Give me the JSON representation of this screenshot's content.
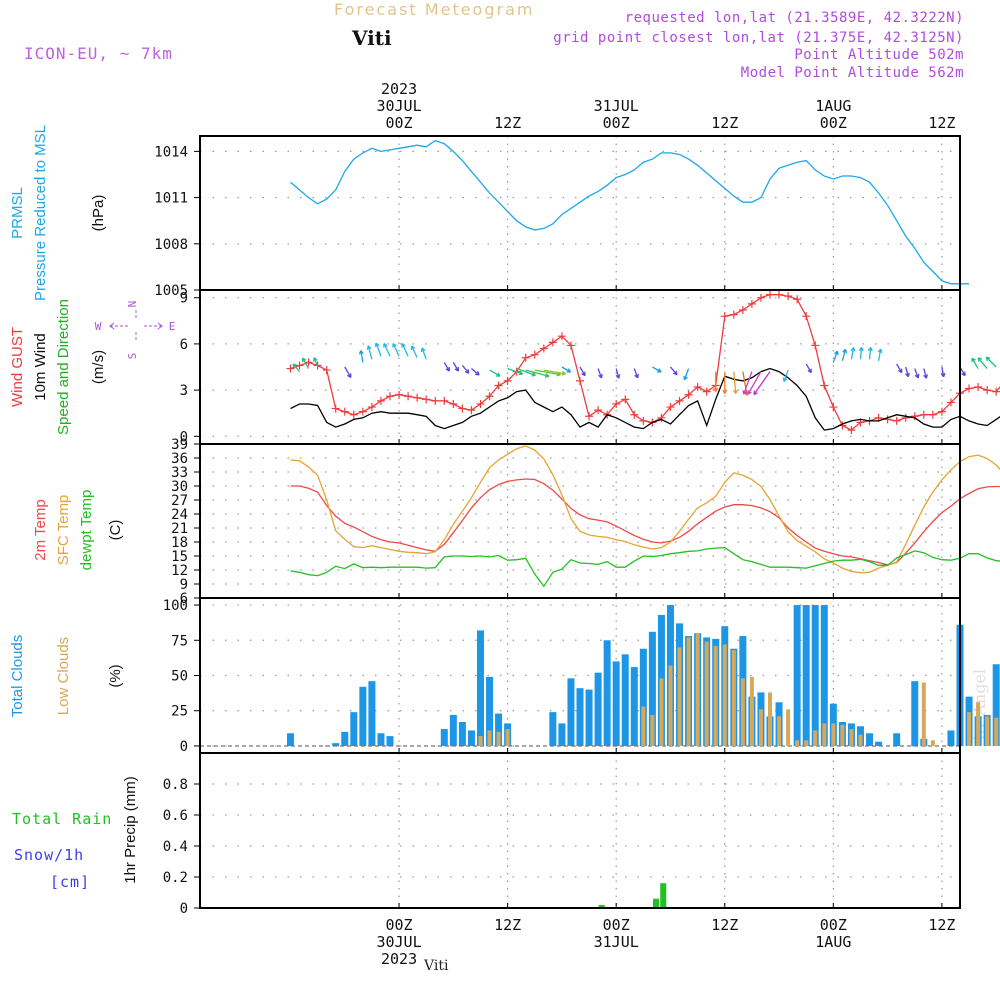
{
  "header": {
    "title": "Forecast Meteogram",
    "station": "Viti",
    "model": "ICON-EU, ~ 7km",
    "requested": "requested lon,lat (21.3589E, 42.3222N)",
    "grid_point": "grid point closest lon,lat (21.375E, 42.3125N)",
    "point_altitude": "Point Altitude 502m",
    "model_altitude": "Model Point Altitude 562m"
  },
  "footer": {
    "station": "Viti"
  },
  "watermark": "by Angel",
  "colors": {
    "pressure": "#1ca9e6",
    "gust": "#f03c3c",
    "wind10m": "#000000",
    "wind_dir_label": "#22b022",
    "compass": "#b050e0",
    "temp2m": "#f04848",
    "sfc_temp": "#e6a432",
    "dewpoint": "#22c022",
    "total_clouds": "#1e96e6",
    "low_clouds": "#d8a85a",
    "rain": "#22c022",
    "snow": "#3c3cf0"
  },
  "time_axis": {
    "hours_total": 63,
    "top_ticks": [
      {
        "hour": 12,
        "lines": [
          "2023",
          "30JUL",
          "00Z"
        ]
      },
      {
        "hour": 24,
        "lines": [
          "12Z"
        ]
      },
      {
        "hour": 36,
        "lines": [
          "31JUL",
          "00Z"
        ]
      },
      {
        "hour": 48,
        "lines": [
          "12Z"
        ]
      },
      {
        "hour": 60,
        "lines": [
          "1AUG",
          "00Z"
        ]
      },
      {
        "hour": 72,
        "lines": [
          "12Z"
        ]
      }
    ],
    "bottom_ticks": [
      {
        "hour": 12,
        "lines": [
          "00Z",
          "30JUL",
          "2023"
        ]
      },
      {
        "hour": 24,
        "lines": [
          "12Z"
        ]
      },
      {
        "hour": 36,
        "lines": [
          "00Z",
          "31JUL"
        ]
      },
      {
        "hour": 48,
        "lines": [
          "12Z"
        ]
      },
      {
        "hour": 60,
        "lines": [
          "00Z",
          "1AUG"
        ]
      },
      {
        "hour": 72,
        "lines": [
          "12Z"
        ]
      }
    ]
  },
  "chart_data": [
    {
      "type": "line",
      "title": "PRMSL Pressure Reduced to MSL",
      "ylabel_lines": [
        "PRMSL",
        "Pressure Reduced to MSL"
      ],
      "unit": "(hPa)",
      "ylim": [
        1005,
        1015
      ],
      "yticks": [
        1005,
        1008,
        1011,
        1014
      ],
      "x_start_hour": 0,
      "step_hours": 1,
      "series": [
        {
          "name": "PRMSL",
          "values": [
            1012.0,
            1011.5,
            1011.0,
            1010.6,
            1010.9,
            1011.5,
            1012.7,
            1013.5,
            1013.9,
            1014.2,
            1014.0,
            1014.1,
            1014.2,
            1014.3,
            1014.4,
            1014.3,
            1014.7,
            1014.5,
            1014.0,
            1013.4,
            1012.7,
            1012.0,
            1011.3,
            1010.7,
            1010.1,
            1009.5,
            1009.1,
            1008.9,
            1009.0,
            1009.3,
            1009.9,
            1010.3,
            1010.7,
            1011.1,
            1011.4,
            1011.8,
            1012.3,
            1012.5,
            1012.8,
            1013.3,
            1013.5,
            1013.9,
            1013.9,
            1013.8,
            1013.5,
            1013.1,
            1012.6,
            1012.1,
            1011.6,
            1011.1,
            1010.7,
            1010.7,
            1011.0,
            1012.2,
            1012.9,
            1013.1,
            1013.3,
            1013.4,
            1012.8,
            1012.4,
            1012.2,
            1012.4,
            1012.4,
            1012.3,
            1012.0,
            1011.3,
            1010.5,
            1009.5,
            1008.5,
            1007.7,
            1006.8,
            1006.2,
            1005.6,
            1005.4,
            1005.4,
            1005.4
          ]
        }
      ]
    },
    {
      "type": "line",
      "title": "Wind GUST, 10m Wind Speed and Direction",
      "ylabel_lines": [
        "Wind GUST",
        "10m Wind",
        "Speed and Direction"
      ],
      "unit": "(m/s)",
      "compass": {
        "n": "N",
        "s": "S",
        "w": "W",
        "e": "E"
      },
      "ylim": [
        -0.5,
        9.5
      ],
      "yticks": [
        0,
        3,
        6,
        9
      ],
      "x_start_hour": 0,
      "step_hours": 1,
      "series": [
        {
          "name": "Wind GUST",
          "values": [
            4.4,
            4.6,
            4.8,
            4.6,
            4.3,
            1.8,
            1.6,
            1.4,
            1.6,
            1.9,
            2.3,
            2.6,
            2.7,
            2.6,
            2.5,
            2.4,
            2.3,
            2.3,
            2.1,
            1.8,
            1.7,
            2.1,
            2.6,
            3.3,
            3.6,
            4.2,
            5.1,
            5.3,
            5.7,
            6.1,
            6.5,
            5.9,
            3.6,
            1.3,
            1.7,
            1.4,
            2.1,
            2.4,
            1.4,
            1.0,
            0.9,
            1.2,
            1.9,
            2.3,
            2.7,
            3.2,
            2.9,
            3.3,
            7.8,
            7.9,
            8.2,
            8.6,
            9.0,
            9.2,
            9.2,
            9.1,
            8.9,
            7.8,
            5.9,
            3.3,
            1.9,
            0.7,
            0.4,
            0.9,
            1.0,
            1.2,
            1.1,
            1.0,
            1.2,
            1.3,
            1.4,
            1.4,
            1.6,
            2.2,
            2.8,
            3.1,
            3.2,
            3.0,
            2.9,
            3.6,
            4.1,
            4.4,
            4.6,
            4.6,
            3.0,
            1.0
          ]
        },
        {
          "name": "10m Wind",
          "values": [
            1.8,
            2.1,
            2.1,
            2.0,
            0.9,
            0.6,
            0.8,
            1.1,
            1.2,
            1.5,
            1.6,
            1.5,
            1.5,
            1.5,
            1.4,
            1.3,
            0.7,
            0.5,
            0.7,
            0.9,
            1.3,
            1.5,
            1.9,
            2.3,
            2.5,
            2.9,
            3.0,
            2.2,
            1.9,
            1.6,
            1.9,
            1.4,
            0.6,
            0.9,
            0.6,
            1.4,
            1.2,
            0.9,
            0.6,
            0.5,
            0.9,
            1.1,
            0.8,
            1.4,
            2.0,
            2.3,
            0.7,
            2.4,
            3.9,
            3.7,
            3.6,
            3.8,
            4.2,
            4.4,
            4.2,
            3.8,
            3.3,
            2.6,
            1.2,
            0.4,
            0.5,
            0.8,
            1.0,
            1.1,
            1.0,
            1.0,
            1.2,
            1.4,
            1.3,
            1.2,
            0.8,
            0.6,
            0.6,
            1.1,
            1.3,
            1.0,
            0.8,
            0.7,
            1.1,
            1.5,
            1.8,
            1.5,
            1.0,
            0.6,
            0.5
          ]
        }
      ]
    },
    {
      "type": "line",
      "title": "Temperatures",
      "ylabel_lines": [
        "2m Temp",
        "SFC Temp",
        "dewpt Temp"
      ],
      "unit": "(C)",
      "ylim": [
        6,
        39
      ],
      "yticks": [
        6,
        9,
        12,
        15,
        18,
        21,
        24,
        27,
        30,
        33,
        36,
        39
      ],
      "x_start_hour": 0,
      "step_hours": 1,
      "series": [
        {
          "name": "2m Temp",
          "values": [
            30.0,
            30.0,
            29.5,
            28.7,
            25.8,
            23.5,
            22.0,
            21.2,
            20.2,
            19.2,
            18.5,
            18.0,
            17.8,
            17.3,
            16.8,
            16.3,
            16.0,
            17.5,
            20.0,
            22.6,
            25.3,
            27.5,
            29.2,
            30.3,
            31.0,
            31.3,
            31.5,
            31.4,
            30.5,
            29.1,
            27.2,
            25.2,
            23.8,
            23.0,
            22.7,
            22.3,
            21.4,
            20.4,
            19.4,
            18.6,
            18.0,
            17.8,
            18.2,
            19.0,
            20.3,
            21.9,
            23.3,
            24.6,
            25.5,
            26.0,
            26.0,
            25.8,
            25.3,
            24.5,
            23.2,
            21.0,
            19.4,
            18.0,
            16.7,
            16.0,
            15.5,
            15.0,
            14.8,
            14.4,
            14.0,
            13.6,
            13.1,
            13.6,
            15.6,
            17.8,
            20.2,
            22.4,
            24.3,
            25.7,
            27.3,
            28.4,
            29.4,
            29.8,
            29.9,
            29.9,
            29.6,
            29.1,
            28.3
          ]
        },
        {
          "name": "SFC Temp",
          "values": [
            35.6,
            35.4,
            34.1,
            32.3,
            27.0,
            20.4,
            18.6,
            17.0,
            16.8,
            17.2,
            16.8,
            16.4,
            16.0,
            15.8,
            15.7,
            15.5,
            15.9,
            18.5,
            21.8,
            24.6,
            27.5,
            30.8,
            33.9,
            35.6,
            36.8,
            38.0,
            38.6,
            37.7,
            35.8,
            32.4,
            28.1,
            23.0,
            20.3,
            19.5,
            19.2,
            19.0,
            18.5,
            18.1,
            17.4,
            16.9,
            16.5,
            16.8,
            18.0,
            20.3,
            22.9,
            25.3,
            26.4,
            27.8,
            30.8,
            32.8,
            32.3,
            31.4,
            29.9,
            27.1,
            23.6,
            20.2,
            18.3,
            17.1,
            15.9,
            14.4,
            13.5,
            12.4,
            11.7,
            11.4,
            11.5,
            12.4,
            13.0,
            13.7,
            17.5,
            21.6,
            25.5,
            28.7,
            31.3,
            33.5,
            35.2,
            36.3,
            36.6,
            35.9,
            34.5,
            32.4,
            29.6,
            28.0
          ]
        },
        {
          "name": "dewpt Temp",
          "values": [
            11.8,
            11.5,
            11.0,
            10.8,
            11.5,
            12.8,
            12.3,
            13.3,
            12.5,
            12.6,
            12.5,
            12.6,
            12.6,
            12.6,
            12.6,
            12.4,
            12.5,
            14.8,
            15.0,
            15.0,
            14.9,
            15.0,
            14.8,
            15.1,
            14.1,
            14.2,
            14.5,
            11.1,
            8.5,
            11.5,
            12.2,
            14.2,
            13.5,
            13.4,
            13.2,
            13.8,
            12.6,
            12.6,
            13.9,
            15.0,
            14.9,
            15.1,
            15.5,
            15.7,
            16.0,
            16.1,
            16.5,
            16.7,
            16.8,
            15.5,
            14.2,
            13.8,
            13.2,
            12.6,
            12.6,
            12.6,
            12.5,
            12.4,
            12.9,
            13.4,
            13.9,
            14.1,
            14.1,
            14.3,
            13.8,
            13.0,
            13.0,
            14.6,
            15.3,
            16.1,
            15.7,
            14.7,
            14.2,
            14.1,
            14.5,
            15.5,
            15.5,
            14.6,
            14.0,
            13.8,
            13.8,
            13.6,
            15.0
          ]
        }
      ]
    },
    {
      "type": "bar",
      "title": "Total Clouds / Low Clouds",
      "ylabel_lines": [
        "Total Clouds",
        "Low Clouds"
      ],
      "unit": "(%)",
      "ylim": [
        -5,
        105
      ],
      "yticks": [
        0,
        25,
        50,
        75,
        100
      ],
      "x_start_hour": 0,
      "step_hours": 1,
      "series": [
        {
          "name": "Total Clouds",
          "values": [
            9,
            0,
            0,
            0,
            0,
            2,
            10,
            24,
            42,
            46,
            9,
            7,
            0,
            0,
            0,
            0,
            0,
            12,
            22,
            17,
            11,
            82,
            49,
            23,
            16,
            0,
            0,
            0,
            0,
            24,
            16,
            48,
            41,
            40,
            52,
            75,
            60,
            65,
            56,
            69,
            81,
            93,
            100,
            87,
            78,
            80,
            77,
            76,
            85,
            69,
            78,
            35,
            38,
            21,
            31,
            0,
            100,
            100,
            100,
            100,
            30,
            17,
            16,
            14,
            9,
            3,
            0,
            9,
            0,
            46,
            5,
            0,
            0,
            11,
            86,
            35,
            21,
            22,
            58,
            66,
            26,
            41,
            100,
            100
          ]
        },
        {
          "name": "Low Clouds",
          "values": [
            0,
            0,
            0,
            0,
            0,
            0,
            0,
            0,
            0,
            0,
            0,
            0,
            0,
            0,
            0,
            0,
            0,
            0,
            0,
            0,
            0,
            7,
            11,
            10,
            12,
            0,
            0,
            0,
            0,
            0,
            0,
            0,
            0,
            0,
            0,
            0,
            0,
            0,
            0,
            28,
            22,
            48,
            57,
            70,
            77,
            80,
            74,
            71,
            72,
            68,
            48,
            49,
            26,
            38,
            21,
            26,
            4,
            4,
            11,
            16,
            16,
            15,
            12,
            8,
            0,
            0,
            0,
            0,
            0,
            0,
            45,
            4,
            0,
            0,
            0,
            24,
            31,
            21,
            20,
            24,
            17,
            7,
            7,
            3
          ]
        }
      ]
    },
    {
      "type": "bar",
      "title": "1hr Precip (mm)",
      "ylabel_lines": [
        "Total  Rain",
        "Snow/1h",
        "[cm]"
      ],
      "ylabel_main": "1hr Precip (mm)",
      "ylim": [
        0,
        1.0
      ],
      "yticks": [
        0,
        0.2,
        0.4,
        0.6,
        0.8
      ],
      "bars": [
        {
          "name": "Total Rain",
          "hour": 34.4,
          "value": 0.02
        },
        {
          "name": "Total Rain",
          "hour": 40.4,
          "value": 0.06
        },
        {
          "name": "Total Rain",
          "hour": 41.2,
          "value": 0.16
        }
      ]
    }
  ]
}
